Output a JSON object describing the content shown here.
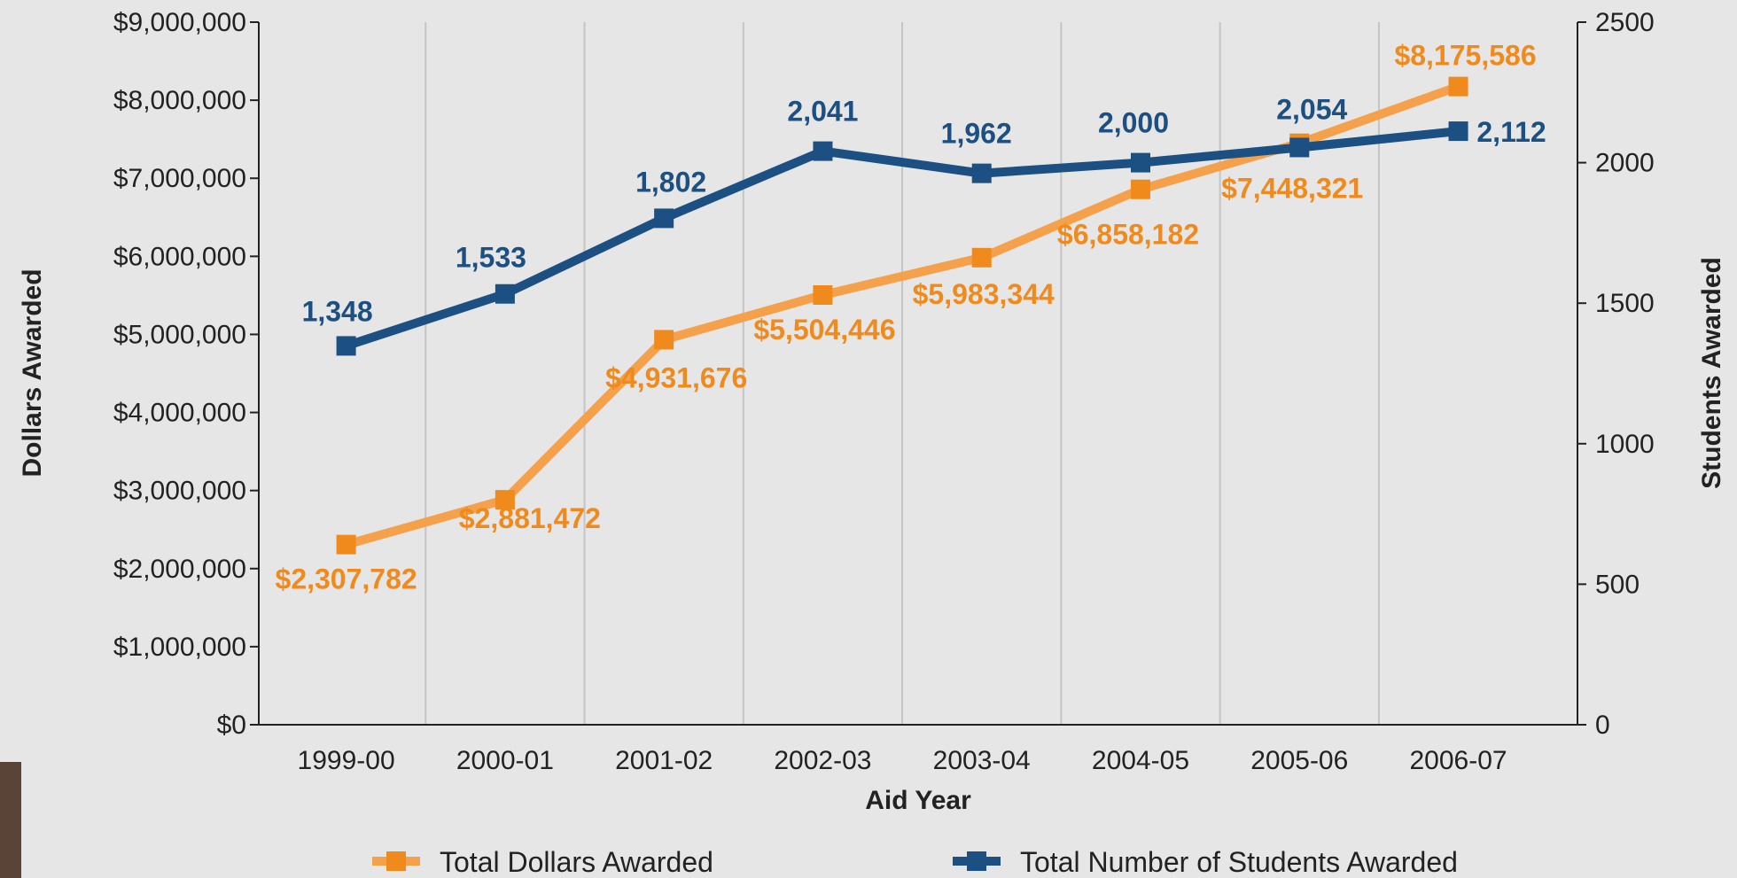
{
  "chart_data": {
    "type": "line",
    "categories": [
      "1999-00",
      "2000-01",
      "2001-02",
      "2002-03",
      "2003-04",
      "2004-05",
      "2005-06",
      "2006-07"
    ],
    "xlabel": "Aid Year",
    "ylabel_left": "Dollars Awarded",
    "ylabel_right": "Students Awarded",
    "ylim_left": [
      0,
      9000000
    ],
    "ylim_right": [
      0,
      2500
    ],
    "left_ticks": [
      "$0",
      "$1,000,000",
      "$2,000,000",
      "$3,000,000",
      "$4,000,000",
      "$5,000,000",
      "$6,000,000",
      "$7,000,000",
      "$8,000,000",
      "$9,000,000"
    ],
    "right_ticks": [
      "0",
      "500",
      "1000",
      "1500",
      "2000",
      "2500"
    ],
    "grid": "vertical",
    "legend_position": "bottom",
    "series": [
      {
        "name": "Total Dollars Awarded",
        "axis": "left",
        "color": "#f5a04a",
        "label_color": "#f08a1c",
        "values": [
          2307782,
          2881472,
          4931676,
          5504446,
          5983344,
          6858182,
          7448321,
          8175586
        ],
        "labels": [
          "$2,307,782",
          "$2,881,472",
          "$4,931,676",
          "$5,504,446",
          "$5,983,344",
          "$6,858,182",
          "$7,448,321",
          "$8,175,586"
        ]
      },
      {
        "name": "Total Number of Students Awarded",
        "axis": "right",
        "color": "#1c4f82",
        "label_color": "#1c4f82",
        "values": [
          1348,
          1533,
          1802,
          2041,
          1962,
          2000,
          2054,
          2112
        ],
        "labels": [
          "1,348",
          "1,533",
          "1,802",
          "2,041",
          "1,962",
          "2,000",
          "2,054",
          "2,112"
        ]
      }
    ]
  }
}
